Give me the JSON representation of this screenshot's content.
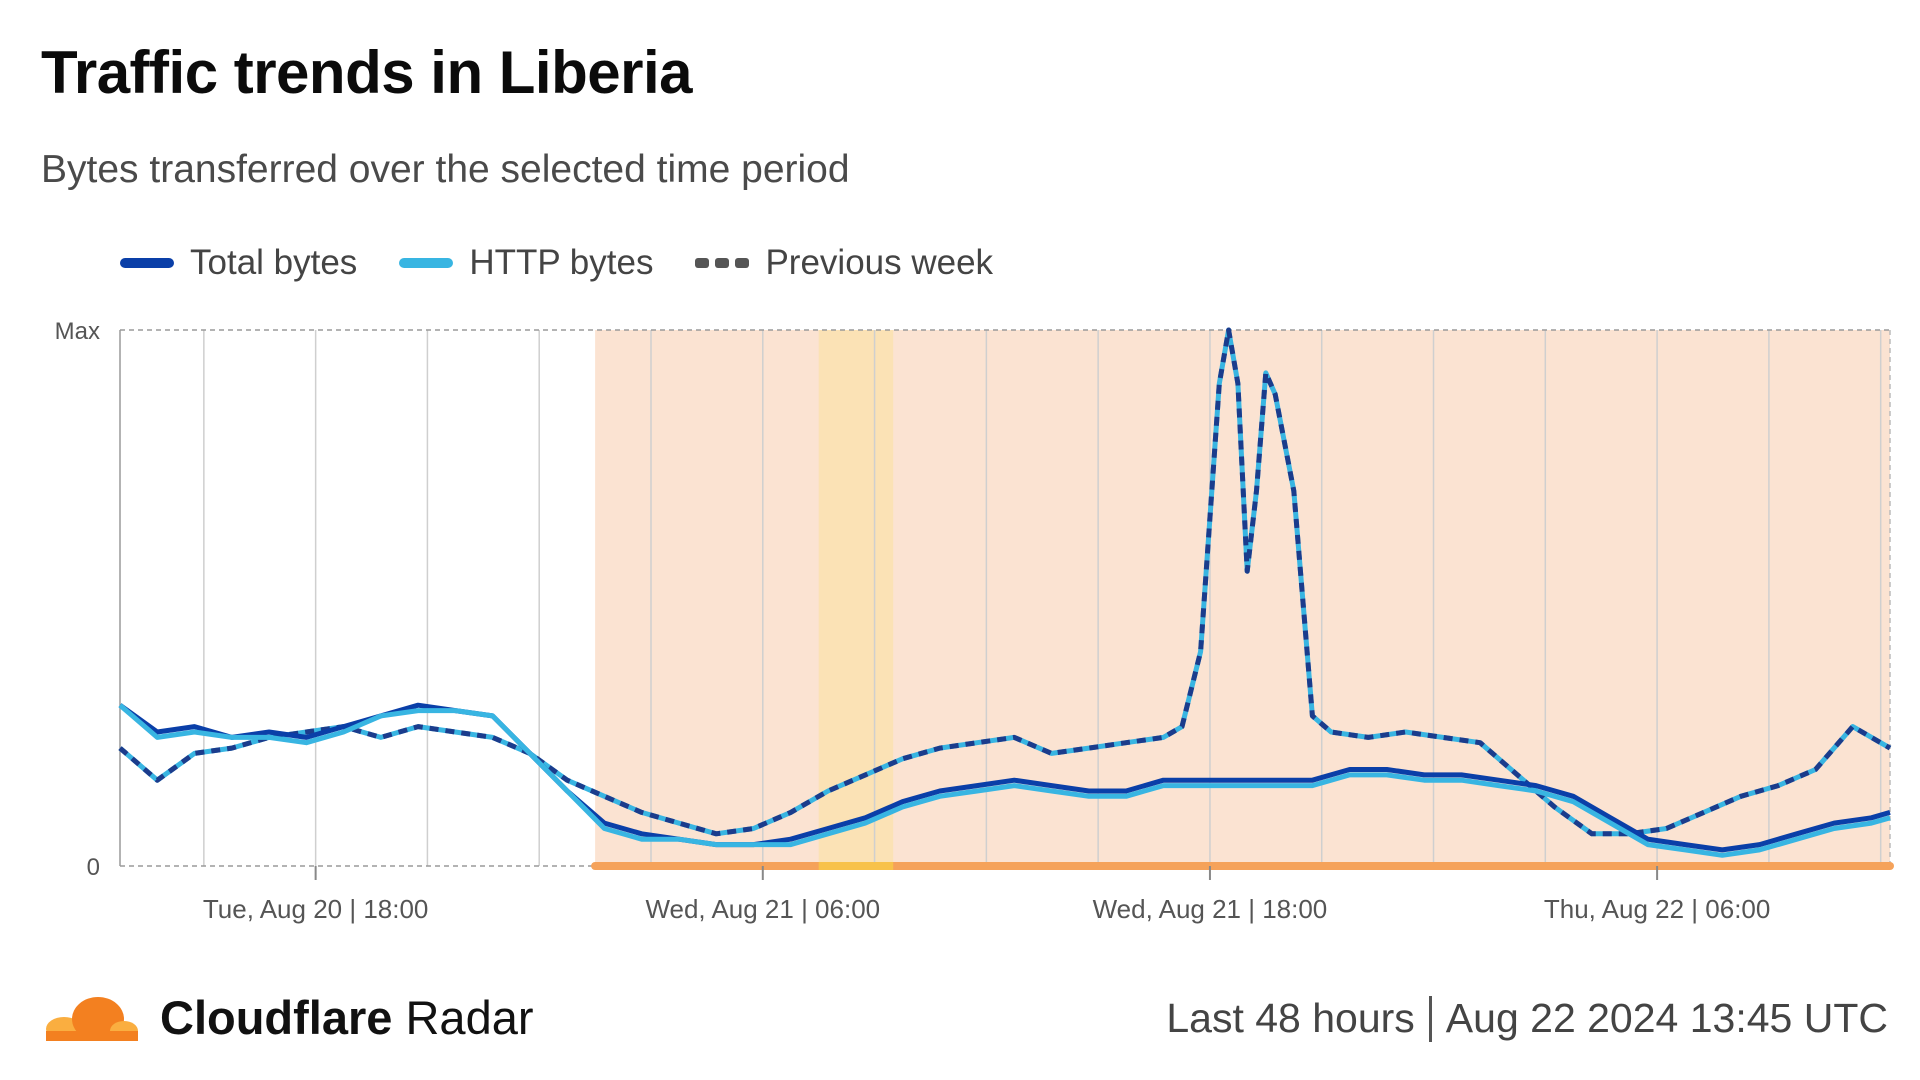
{
  "header": {
    "title": "Traffic trends in Liberia",
    "subtitle": "Bytes transferred over the selected time period"
  },
  "legend": [
    {
      "label": "Total bytes",
      "color": "#0a3fa8",
      "style": "solid"
    },
    {
      "label": "HTTP bytes",
      "color": "#38b5e2",
      "style": "solid"
    },
    {
      "label": "Previous week",
      "color": "#555555",
      "style": "dashed"
    }
  ],
  "footer": {
    "brand_bold": "Cloudflare",
    "brand_light": "Radar",
    "period": "Last 48 hours",
    "timestamp": "Aug 22 2024 13:45 UTC"
  },
  "colors": {
    "outage_shade": "#fbe3d2",
    "outage_highlight": "#fbe2b5",
    "outage_bar": "#f5a25a",
    "cloud_orange": "#f38020",
    "cloud_light": "#faae40"
  },
  "chart_data": {
    "type": "line",
    "y_tick_labels": [
      "0",
      "Max"
    ],
    "ylim": [
      0,
      100
    ],
    "x_tick_labels": [
      "Tue, Aug 20 | 18:00",
      "Wed, Aug 21 | 06:00",
      "Wed, Aug 21 | 18:00",
      "Thu, Aug 22 | 06:00"
    ],
    "x_ticks": [
      12.75,
      24.75,
      36.75,
      48.75
    ],
    "xlim": [
      7.5,
      55.0
    ],
    "grid": true,
    "legend_position": "top-left",
    "shaded_regions": [
      {
        "start": 20.25,
        "end": 55.0,
        "kind": "outage"
      },
      {
        "start": 26.25,
        "end": 28.25,
        "kind": "highlight"
      }
    ],
    "series": [
      {
        "name": "Total bytes",
        "x": [
          7.5,
          8.5,
          9.5,
          10.5,
          11.5,
          12.5,
          13.5,
          14.5,
          15.5,
          16.5,
          17.5,
          18.5,
          19.5,
          20.5,
          21.5,
          22.5,
          23.5,
          24.5,
          25.5,
          26.5,
          27.5,
          28.5,
          29.5,
          30.5,
          31.5,
          32.5,
          33.5,
          34.5,
          35.5,
          36.5,
          37.5,
          38.5,
          39.5,
          40.5,
          41.5,
          42.5,
          43.5,
          44.5,
          45.5,
          46.5,
          47.5,
          48.5,
          49.5,
          50.5,
          51.5,
          52.5,
          53.5,
          54.5,
          55.0
        ],
        "values": [
          30,
          25,
          26,
          24,
          25,
          24,
          26,
          28,
          30,
          29,
          28,
          21,
          14,
          8,
          6,
          5,
          4,
          4,
          5,
          7,
          9,
          12,
          14,
          15,
          16,
          15,
          14,
          14,
          16,
          16,
          16,
          16,
          16,
          18,
          18,
          17,
          17,
          16,
          15,
          13,
          9,
          5,
          4,
          3,
          4,
          6,
          8,
          9,
          10
        ],
        "color": "#0a3fa8"
      },
      {
        "name": "HTTP bytes",
        "x": [
          7.5,
          8.5,
          9.5,
          10.5,
          11.5,
          12.5,
          13.5,
          14.5,
          15.5,
          16.5,
          17.5,
          18.5,
          19.5,
          20.5,
          21.5,
          22.5,
          23.5,
          24.5,
          25.5,
          26.5,
          27.5,
          28.5,
          29.5,
          30.5,
          31.5,
          32.5,
          33.5,
          34.5,
          35.5,
          36.5,
          37.5,
          38.5,
          39.5,
          40.5,
          41.5,
          42.5,
          43.5,
          44.5,
          45.5,
          46.5,
          47.5,
          48.5,
          49.5,
          50.5,
          51.5,
          52.5,
          53.5,
          54.5,
          55.0
        ],
        "values": [
          30,
          24,
          25,
          24,
          24,
          23,
          25,
          28,
          29,
          29,
          28,
          21,
          14,
          7,
          5,
          5,
          4,
          4,
          4,
          6,
          8,
          11,
          13,
          14,
          15,
          14,
          13,
          13,
          15,
          15,
          15,
          15,
          15,
          17,
          17,
          16,
          16,
          15,
          14,
          12,
          8,
          4,
          3,
          2,
          3,
          5,
          7,
          8,
          9
        ],
        "color": "#38b5e2"
      },
      {
        "name": "Previous week",
        "x": [
          7.5,
          8.5,
          9.5,
          10.5,
          11.5,
          12.5,
          13.5,
          14.5,
          15.5,
          16.5,
          17.5,
          18.5,
          19.5,
          20.5,
          21.5,
          22.5,
          23.5,
          24.5,
          25.5,
          26.5,
          27.5,
          28.5,
          29.5,
          30.5,
          31.5,
          32.5,
          33.5,
          34.5,
          35.5,
          36.0,
          36.5,
          37.0,
          37.25,
          37.5,
          37.75,
          38.0,
          38.25,
          38.5,
          39.0,
          39.5,
          40.0,
          41.0,
          42.0,
          43.0,
          44.0,
          45.0,
          46.0,
          47.0,
          48.0,
          49.0,
          50.0,
          51.0,
          52.0,
          53.0,
          54.0,
          55.0
        ],
        "values": [
          22,
          16,
          21,
          22,
          24,
          25,
          26,
          24,
          26,
          25,
          24,
          21,
          16,
          13,
          10,
          8,
          6,
          7,
          10,
          14,
          17,
          20,
          22,
          23,
          24,
          21,
          22,
          23,
          24,
          26,
          40,
          90,
          100,
          90,
          55,
          70,
          92,
          88,
          70,
          28,
          25,
          24,
          25,
          24,
          23,
          17,
          11,
          6,
          6,
          7,
          10,
          13,
          15,
          18,
          26,
          22
        ],
        "color": "#555555"
      }
    ]
  }
}
